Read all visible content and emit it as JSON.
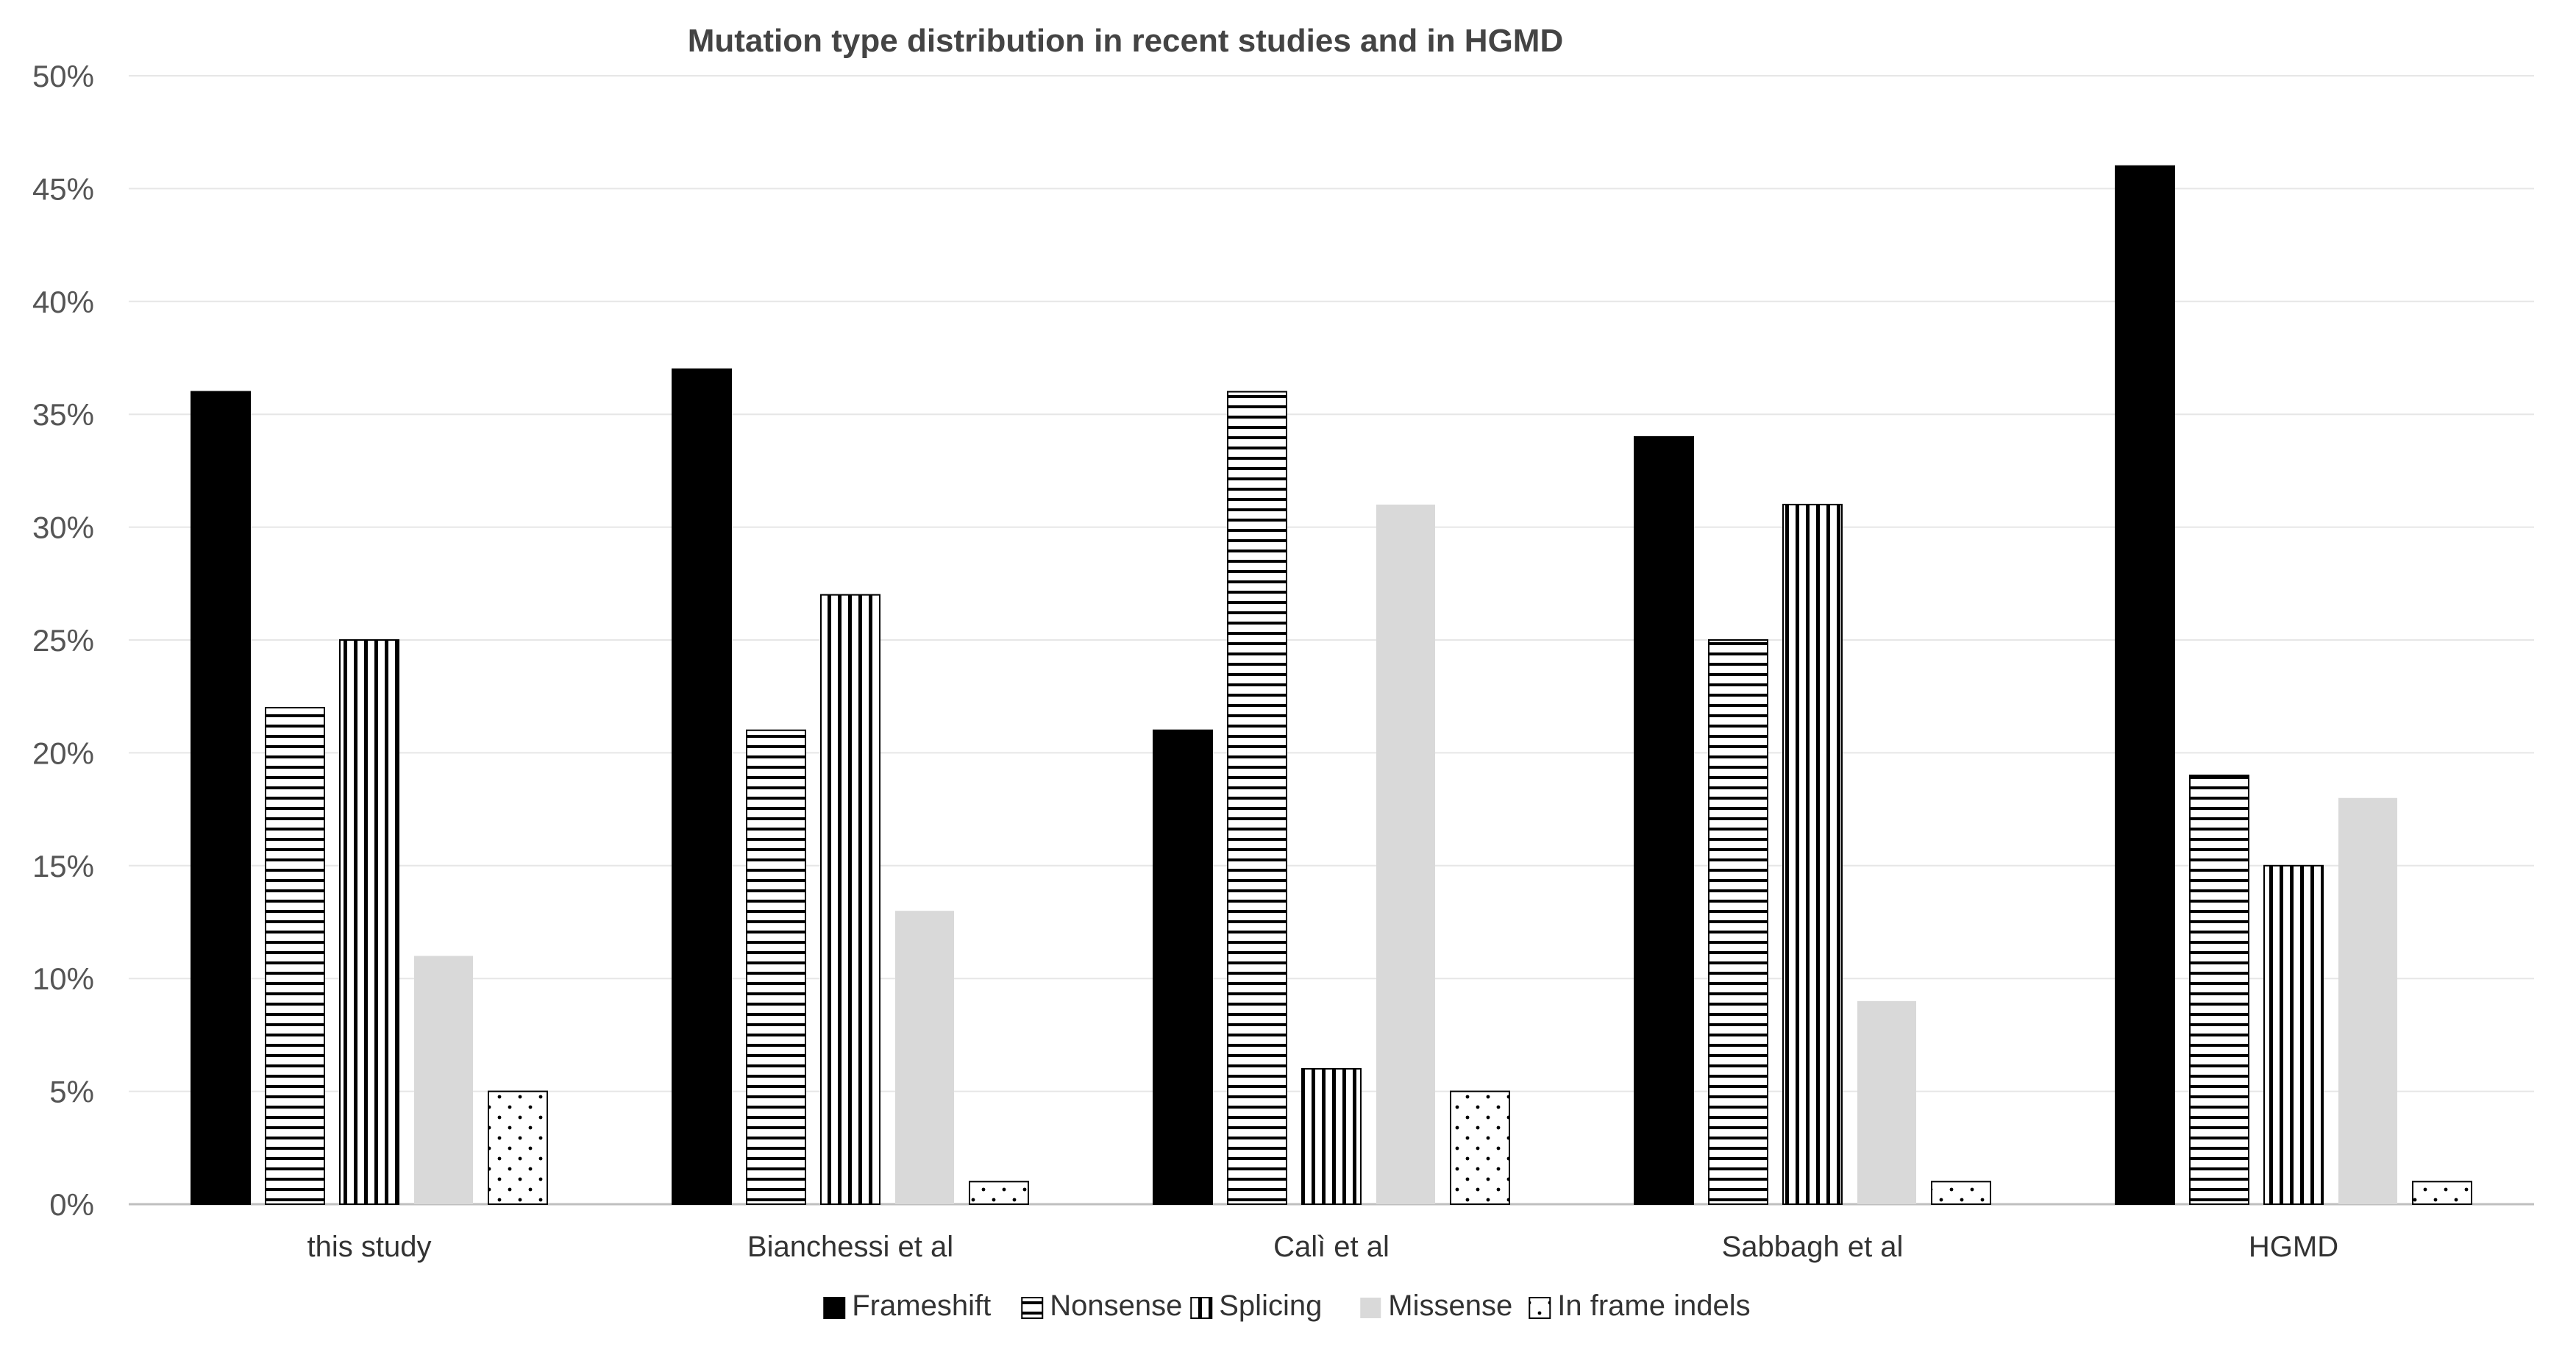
{
  "chart_data": {
    "type": "bar",
    "title": "Mutation type distribution in recent studies and in HGMD",
    "xlabel": "",
    "ylabel": "",
    "ylim": [
      0,
      50
    ],
    "y_ticks": [
      "0%",
      "5%",
      "10%",
      "15%",
      "20%",
      "25%",
      "30%",
      "35%",
      "40%",
      "45%",
      "50%"
    ],
    "grid": true,
    "legend_position": "bottom",
    "categories": [
      "this study",
      "Bianchessi et al",
      "Calì et al",
      "Sabbagh et al",
      "HGMD"
    ],
    "series": [
      {
        "name": "Frameshift",
        "values": [
          36,
          37,
          21,
          34,
          46
        ],
        "pattern": "solid-black"
      },
      {
        "name": "Nonsense",
        "values": [
          22,
          21,
          36,
          25,
          19
        ],
        "pattern": "horizontal-lines"
      },
      {
        "name": "Splicing",
        "values": [
          25,
          27,
          6,
          31,
          15
        ],
        "pattern": "vertical-lines"
      },
      {
        "name": "Missense",
        "values": [
          11,
          13,
          31,
          9,
          18
        ],
        "pattern": "solid-lightgray"
      },
      {
        "name": "In frame indels",
        "values": [
          5,
          1,
          5,
          1,
          1
        ],
        "pattern": "dots"
      }
    ]
  }
}
